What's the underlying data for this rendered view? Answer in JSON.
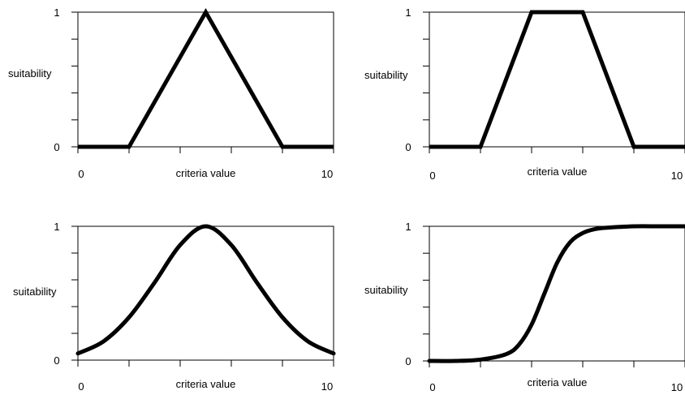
{
  "colors": {
    "line": "#000000",
    "background": "#ffffff"
  },
  "chart_data": [
    {
      "type": "line",
      "curve": "triangular",
      "xlabel": "criteria value",
      "ylabel": "suitability",
      "xlim": [
        0,
        10
      ],
      "ylim": [
        0,
        1
      ],
      "xtick_labels": [
        "0",
        "10"
      ],
      "ytick_labels": [
        "0",
        "1"
      ],
      "grid": false,
      "x": [
        0,
        2,
        5,
        8,
        10
      ],
      "y": [
        0,
        0,
        1,
        0,
        0
      ]
    },
    {
      "type": "line",
      "curve": "trapezoidal",
      "xlabel": "criteria value",
      "ylabel": "suitability",
      "xlim": [
        0,
        10
      ],
      "ylim": [
        0,
        1
      ],
      "xtick_labels": [
        "0",
        "10"
      ],
      "ytick_labels": [
        "0",
        "1"
      ],
      "grid": false,
      "x": [
        0,
        2,
        4,
        6,
        8,
        10
      ],
      "y": [
        0,
        0,
        1,
        1,
        0,
        0
      ]
    },
    {
      "type": "line",
      "curve": "gaussian",
      "xlabel": "criteria value",
      "ylabel": "suitability",
      "xlim": [
        0,
        10
      ],
      "ylim": [
        0,
        1
      ],
      "xtick_labels": [
        "0",
        "10"
      ],
      "ytick_labels": [
        "0",
        "1"
      ],
      "grid": false,
      "x": [
        0,
        1,
        2,
        3,
        4,
        5,
        6,
        7,
        8,
        9,
        10
      ],
      "y": [
        0.05,
        0.14,
        0.32,
        0.58,
        0.86,
        1.0,
        0.86,
        0.58,
        0.32,
        0.14,
        0.05
      ]
    },
    {
      "type": "line",
      "curve": "sigmoidal",
      "xlabel": "criteria value",
      "ylabel": "suitability",
      "xlim": [
        0,
        10
      ],
      "ylim": [
        0,
        1
      ],
      "xtick_labels": [
        "0",
        "10"
      ],
      "ytick_labels": [
        "0",
        "1"
      ],
      "grid": false,
      "x": [
        0,
        1,
        2,
        3,
        3.5,
        4,
        4.5,
        5,
        5.5,
        6,
        6.5,
        7,
        8,
        9,
        10
      ],
      "y": [
        0,
        0.0,
        0.01,
        0.05,
        0.12,
        0.27,
        0.5,
        0.73,
        0.88,
        0.95,
        0.98,
        0.99,
        1.0,
        1.0,
        1.0
      ]
    }
  ]
}
